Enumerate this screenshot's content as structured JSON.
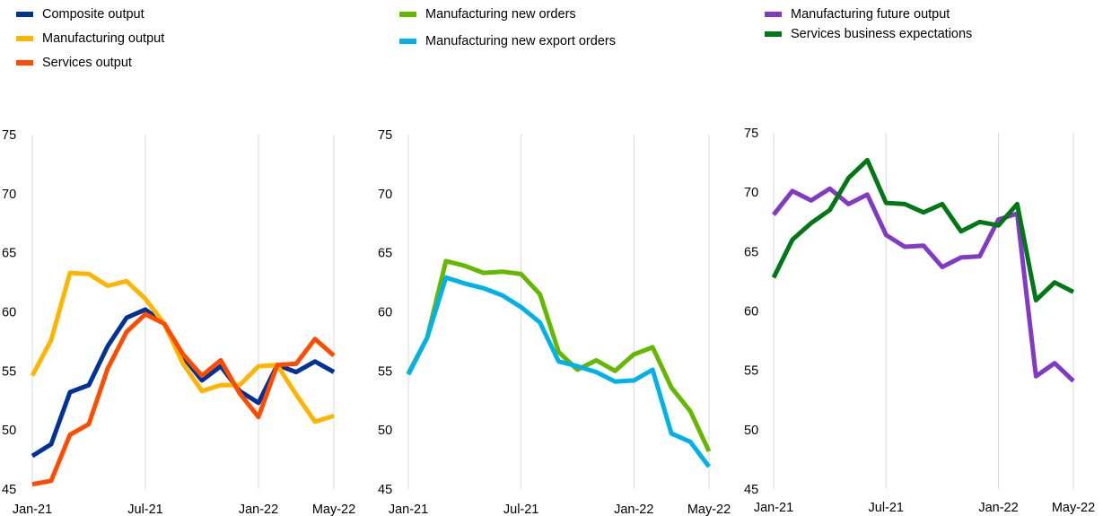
{
  "legend": {
    "items": [
      {
        "label": "Composite output",
        "color": "#003299"
      },
      {
        "label": "Manufacturing output",
        "color": "#FFB400"
      },
      {
        "label": "Services output",
        "color": "#FF4B00"
      },
      {
        "label": "Manufacturing new orders",
        "color": "#65B800"
      },
      {
        "label": "Manufacturing new export orders",
        "color": "#00B1EA"
      },
      {
        "label": "Manufacturing future output",
        "color": "#8139C6"
      },
      {
        "label": "Services business expectations",
        "color": "#007816"
      }
    ]
  },
  "chart_data": [
    {
      "type": "line",
      "x": [
        "Jan-21",
        "Feb-21",
        "Mar-21",
        "Apr-21",
        "May-21",
        "Jun-21",
        "Jul-21",
        "Aug-21",
        "Sep-21",
        "Oct-21",
        "Nov-21",
        "Dec-21",
        "Jan-22",
        "Feb-22",
        "Mar-22",
        "Apr-22",
        "May-22"
      ],
      "x_tick_labels": [
        "Jan-21",
        "Jul-21",
        "Jan-22",
        "May-22"
      ],
      "y_tick_labels": [
        "45",
        "50",
        "55",
        "60",
        "65",
        "70",
        "75"
      ],
      "ylim": [
        45,
        75
      ],
      "grid": "vertical",
      "series": [
        {
          "name": "Composite output",
          "color": "#003299",
          "values": [
            47.8,
            48.8,
            53.2,
            53.8,
            57.1,
            59.5,
            60.2,
            59.0,
            56.2,
            54.2,
            55.4,
            53.3,
            52.3,
            55.5,
            54.9,
            55.8,
            54.9
          ]
        },
        {
          "name": "Manufacturing output",
          "color": "#FFB400",
          "values": [
            54.6,
            57.6,
            63.3,
            63.2,
            62.2,
            62.6,
            61.1,
            59.0,
            55.6,
            53.3,
            53.8,
            53.8,
            55.4,
            55.5,
            53.0,
            50.7,
            51.2
          ]
        },
        {
          "name": "Services output",
          "color": "#FF4B00",
          "values": [
            45.4,
            45.7,
            49.6,
            50.5,
            55.2,
            58.3,
            59.8,
            59.0,
            56.4,
            54.6,
            55.9,
            53.1,
            51.1,
            55.5,
            55.6,
            57.7,
            56.3
          ]
        }
      ]
    },
    {
      "type": "line",
      "x": [
        "Jan-21",
        "Feb-21",
        "Mar-21",
        "Apr-21",
        "May-21",
        "Jun-21",
        "Jul-21",
        "Aug-21",
        "Sep-21",
        "Oct-21",
        "Nov-21",
        "Dec-21",
        "Jan-22",
        "Feb-22",
        "Mar-22",
        "Apr-22",
        "May-22"
      ],
      "x_tick_labels": [
        "Jan-21",
        "Jul-21",
        "Jan-22",
        "May-22"
      ],
      "y_tick_labels": [
        "45",
        "50",
        "55",
        "60",
        "65",
        "70",
        "75"
      ],
      "ylim": [
        45,
        75
      ],
      "grid": "vertical",
      "series": [
        {
          "name": "Manufacturing new orders",
          "color": "#65B800",
          "values": [
            54.8,
            57.8,
            64.3,
            63.9,
            63.3,
            63.4,
            63.2,
            61.5,
            56.6,
            55.1,
            55.9,
            55.0,
            56.4,
            57.0,
            53.6,
            51.6,
            48.2
          ]
        },
        {
          "name": "Manufacturing new export orders",
          "color": "#00B1EA",
          "values": [
            54.7,
            57.8,
            62.9,
            62.4,
            62.0,
            61.4,
            60.4,
            59.1,
            55.8,
            55.4,
            54.9,
            54.1,
            54.2,
            55.1,
            49.7,
            49.0,
            46.9
          ]
        }
      ]
    },
    {
      "type": "line",
      "x": [
        "Jan-21",
        "Feb-21",
        "Mar-21",
        "Apr-21",
        "May-21",
        "Jun-21",
        "Jul-21",
        "Aug-21",
        "Sep-21",
        "Oct-21",
        "Nov-21",
        "Dec-21",
        "Jan-22",
        "Feb-22",
        "Mar-22",
        "Apr-22",
        "May-22"
      ],
      "x_tick_labels": [
        "Jan-21",
        "Jul-21",
        "Jan-22",
        "May-22"
      ],
      "y_tick_labels": [
        "45",
        "50",
        "55",
        "60",
        "65",
        "70",
        "75"
      ],
      "ylim": [
        45,
        75
      ],
      "grid": "vertical",
      "series": [
        {
          "name": "Manufacturing future output",
          "color": "#8139C6",
          "values": [
            68.1,
            70.1,
            69.3,
            70.3,
            69.0,
            69.8,
            66.4,
            65.4,
            65.5,
            63.7,
            64.5,
            64.6,
            67.7,
            68.2,
            54.5,
            55.6,
            54.1
          ]
        },
        {
          "name": "Services business expectations",
          "color": "#007816",
          "values": [
            62.8,
            66.0,
            67.4,
            68.5,
            71.2,
            72.7,
            69.1,
            69.0,
            68.3,
            69.0,
            66.7,
            67.5,
            67.2,
            69.0,
            60.9,
            62.4,
            61.6
          ]
        }
      ]
    }
  ]
}
